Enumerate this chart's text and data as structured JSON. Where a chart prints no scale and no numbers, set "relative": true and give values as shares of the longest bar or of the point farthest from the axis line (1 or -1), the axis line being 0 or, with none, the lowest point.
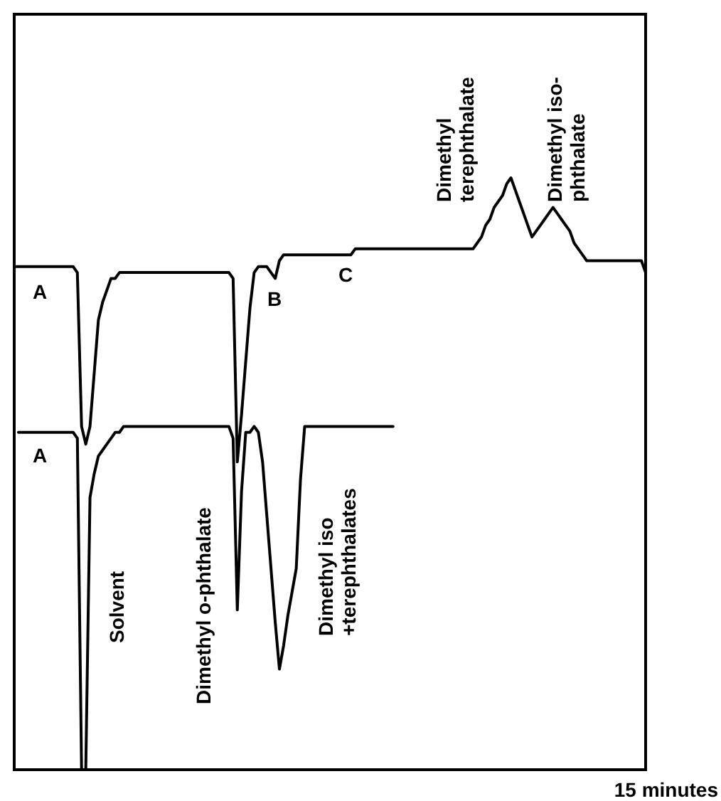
{
  "chart_data": {
    "type": "line",
    "relative": true,
    "marker": "none",
    "line_style": "solid",
    "categories": [
      null,
      null,
      null,
      null,
      null,
      null,
      null,
      null,
      null,
      null,
      null,
      null,
      null,
      null,
      null,
      null,
      null,
      null,
      null,
      null,
      null,
      null,
      null,
      null,
      null,
      null,
      null,
      null,
      null,
      null,
      null,
      null,
      null,
      null,
      null,
      null,
      null,
      null,
      null,
      null,
      null,
      null,
      null,
      null,
      null,
      null,
      null,
      null,
      null,
      null,
      null,
      null,
      null,
      null,
      null,
      null,
      null,
      null,
      null,
      null,
      null,
      null,
      null,
      null,
      null,
      null,
      null,
      null,
      null,
      null,
      null,
      null,
      null,
      null,
      null,
      null,
      null,
      null,
      null,
      null,
      null,
      null,
      null,
      null,
      null,
      null,
      null,
      null,
      null,
      null,
      null,
      null,
      null,
      null,
      null,
      null,
      null,
      null,
      null,
      null,
      null,
      null,
      null,
      null,
      null,
      null,
      null,
      null,
      null,
      null,
      null,
      null,
      null,
      null,
      null,
      null,
      null,
      null,
      null,
      null,
      null,
      null,
      null,
      null,
      null,
      null,
      null,
      null,
      null,
      null,
      null,
      null,
      null,
      null,
      null,
      null,
      null,
      null,
      null,
      null,
      null,
      null,
      null,
      null,
      null,
      null,
      null,
      null,
      null,
      null,
      null
    ],
    "series": [
      {
        "color": "#000000",
        "values": [
          0.85,
          0.85,
          0.85,
          0.85,
          0.85,
          0.85,
          0.85,
          0.85,
          0.85,
          0.85,
          0.85,
          0.85,
          0.85,
          0.85,
          0.85,
          0.84,
          0.58,
          0.55,
          0.58,
          0.67,
          0.76,
          0.79,
          0.81,
          0.83,
          0.83,
          0.84,
          0.84,
          0.84,
          0.84,
          0.84,
          0.84,
          0.84,
          0.84,
          0.84,
          0.84,
          0.84,
          0.84,
          0.84,
          0.84,
          0.84,
          0.84,
          0.84,
          0.84,
          0.84,
          0.84,
          0.84,
          0.84,
          0.84,
          0.84,
          0.84,
          0.84,
          0.84,
          0.83,
          0.52,
          0.6,
          0.69,
          0.78,
          0.84,
          0.85,
          0.85,
          0.85,
          0.84,
          0.83,
          0.86,
          0.87,
          0.87,
          0.87,
          0.87,
          0.87,
          0.87,
          0.87,
          0.87,
          0.87,
          0.87,
          0.87,
          0.87,
          0.87,
          0.87,
          0.87,
          0.87,
          0.87,
          0.88,
          0.88,
          0.88,
          0.88,
          0.88,
          0.88,
          0.88,
          0.88,
          0.88,
          0.88,
          0.88,
          0.88,
          0.88,
          0.88,
          0.88,
          0.88,
          0.88,
          0.88,
          0.88,
          0.88,
          0.88,
          0.88,
          0.88,
          0.88,
          0.88,
          0.88,
          0.88,
          0.88,
          0.88,
          0.89,
          0.9,
          0.92,
          0.93,
          0.95,
          0.96,
          0.97,
          0.99,
          1.0,
          0.98,
          0.96,
          0.94,
          0.92,
          0.9,
          0.91,
          0.92,
          0.93,
          0.94,
          0.95,
          0.94,
          0.93,
          0.92,
          0.91,
          0.89,
          0.88,
          0.87,
          0.86,
          0.86,
          0.86,
          0.86,
          0.86,
          0.86,
          0.86,
          0.86,
          0.86,
          0.86,
          0.86,
          0.86,
          0.86,
          0.86,
          0.84
        ]
      },
      {
        "color": "#000000",
        "values": [
          null,
          0.57,
          0.57,
          0.57,
          0.57,
          0.57,
          0.57,
          0.57,
          0.57,
          0.57,
          0.57,
          0.57,
          0.57,
          0.57,
          0.57,
          0.56,
          0,
          0,
          0.46,
          0.5,
          0.53,
          0.54,
          0.55,
          0.56,
          0.57,
          0.57,
          0.58,
          0.58,
          0.58,
          0.58,
          0.58,
          0.58,
          0.58,
          0.58,
          0.58,
          0.58,
          0.58,
          0.58,
          0.58,
          0.58,
          0.58,
          0.58,
          0.58,
          0.58,
          0.58,
          0.58,
          0.58,
          0.58,
          0.58,
          0.58,
          0.58,
          0.58,
          0.56,
          0.27,
          0.47,
          0.57,
          0.57,
          0.58,
          0.57,
          0.52,
          0.43,
          0.34,
          0.25,
          0.17,
          0.21,
          0.26,
          0.3,
          0.34,
          0.49,
          0.58,
          0.58,
          0.58,
          0.58,
          0.58,
          0.58,
          0.58,
          0.58,
          0.58,
          0.58,
          0.58,
          0.58,
          0.58,
          0.58,
          0.58,
          0.58,
          0.58,
          0.58,
          0.58,
          0.58,
          0.58,
          0.58,
          null,
          null,
          null,
          null,
          null,
          null,
          null,
          null,
          null,
          null,
          null,
          null,
          null,
          null,
          null,
          null,
          null,
          null,
          null,
          null,
          null,
          null,
          null,
          null,
          null,
          null,
          null,
          null,
          null,
          null,
          null,
          null,
          null,
          null,
          null,
          null,
          null,
          null,
          null,
          null,
          null,
          null,
          null,
          null,
          null,
          null,
          null,
          null,
          null,
          null,
          null,
          null,
          null,
          null,
          null,
          null,
          null,
          null,
          null,
          null
        ]
      }
    ],
    "annotations": [
      "15 minutes",
      "A",
      "A",
      "B",
      "C",
      "Solvent",
      "Dimethyl o-phthalate",
      "Dimethyl iso\n+terephthalates",
      "Dimethyl\nterephthalate",
      "Dimethyl iso-\nphthalate"
    ]
  }
}
